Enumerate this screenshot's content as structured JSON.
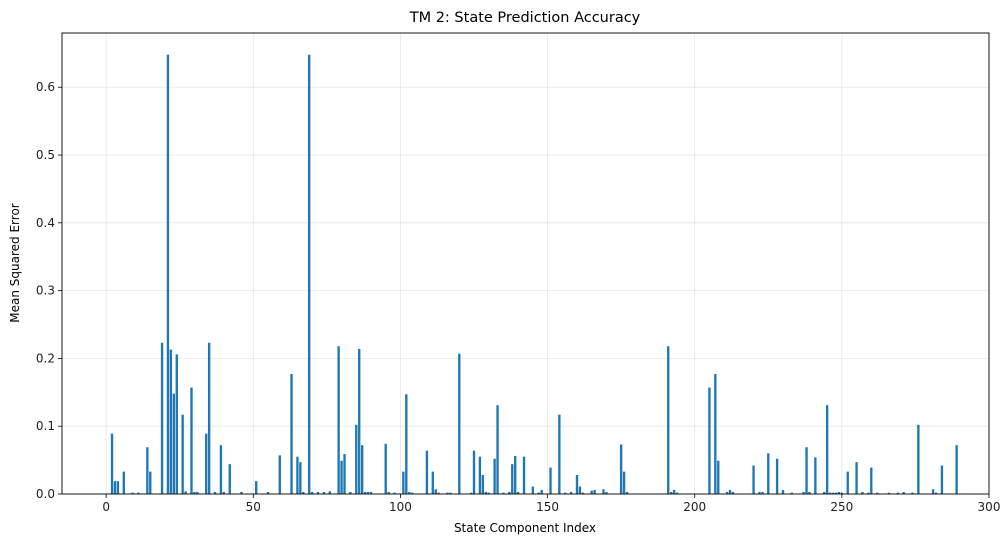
{
  "chart_data": {
    "type": "bar",
    "title": "TM 2: State Prediction Accuracy",
    "xlabel": "State Component Index",
    "ylabel": "Mean Squared Error",
    "xlim": [
      -15,
      300
    ],
    "ylim": [
      0,
      0.68
    ],
    "x_ticks": [
      0,
      50,
      100,
      150,
      200,
      250,
      300
    ],
    "x_tick_labels": [
      "0",
      "50",
      "100",
      "150",
      "200",
      "250",
      "300"
    ],
    "y_ticks": [
      0.0,
      0.1,
      0.2,
      0.3,
      0.4,
      0.5,
      0.6
    ],
    "y_tick_labels": [
      "0.0",
      "0.1",
      "0.2",
      "0.3",
      "0.4",
      "0.5",
      "0.6"
    ],
    "grid": true,
    "bar_color": "#1f77b4",
    "x": [
      2,
      3,
      4,
      6,
      9,
      11,
      14,
      15,
      19,
      21,
      22,
      23,
      24,
      26,
      27,
      29,
      30,
      31,
      34,
      35,
      37,
      39,
      40,
      42,
      46,
      51,
      55,
      59,
      63,
      65,
      66,
      67,
      69,
      70,
      72,
      74,
      76,
      79,
      80,
      81,
      83,
      85,
      86,
      87,
      88,
      89,
      90,
      95,
      96,
      98,
      101,
      102,
      103,
      104,
      109,
      111,
      112,
      113,
      116,
      117,
      120,
      124,
      125,
      127,
      128,
      129,
      130,
      132,
      133,
      135,
      137,
      138,
      139,
      140,
      142,
      145,
      147,
      148,
      151,
      154,
      156,
      158,
      160,
      161,
      162,
      165,
      166,
      169,
      170,
      175,
      176,
      177,
      191,
      192,
      193,
      194,
      205,
      207,
      208,
      211,
      212,
      213,
      220,
      222,
      223,
      225,
      228,
      230,
      233,
      237,
      238,
      239,
      241,
      244,
      245,
      246,
      247,
      248,
      249,
      250,
      252,
      255,
      257,
      259,
      260,
      262,
      266,
      269,
      271,
      274,
      276,
      281,
      282,
      284,
      289
    ],
    "values": [
      0.089,
      0.019,
      0.019,
      0.033,
      0.002,
      0.002,
      0.069,
      0.033,
      0.223,
      0.648,
      0.213,
      0.148,
      0.206,
      0.117,
      0.004,
      0.157,
      0.003,
      0.003,
      0.089,
      0.223,
      0.003,
      0.072,
      0.003,
      0.044,
      0.003,
      0.019,
      0.003,
      0.057,
      0.177,
      0.055,
      0.047,
      0.003,
      0.648,
      0.003,
      0.003,
      0.003,
      0.004,
      0.218,
      0.049,
      0.059,
      0.003,
      0.102,
      0.214,
      0.072,
      0.003,
      0.003,
      0.003,
      0.074,
      0.003,
      0.002,
      0.033,
      0.147,
      0.003,
      0.002,
      0.064,
      0.033,
      0.007,
      0.002,
      0.002,
      0.002,
      0.207,
      0.002,
      0.064,
      0.055,
      0.028,
      0.003,
      0.002,
      0.052,
      0.131,
      0.002,
      0.003,
      0.044,
      0.056,
      0.003,
      0.055,
      0.011,
      0.002,
      0.006,
      0.039,
      0.117,
      0.002,
      0.003,
      0.028,
      0.011,
      0.002,
      0.005,
      0.006,
      0.007,
      0.003,
      0.073,
      0.033,
      0.003,
      0.218,
      0.003,
      0.006,
      0.002,
      0.157,
      0.177,
      0.049,
      0.003,
      0.006,
      0.003,
      0.042,
      0.003,
      0.003,
      0.06,
      0.052,
      0.006,
      0.002,
      0.003,
      0.069,
      0.003,
      0.054,
      0.003,
      0.131,
      0.002,
      0.002,
      0.002,
      0.003,
      0.002,
      0.033,
      0.047,
      0.003,
      0.002,
      0.039,
      0.002,
      0.002,
      0.002,
      0.003,
      0.002,
      0.102,
      0.007,
      0.002,
      0.042,
      0.072
    ]
  }
}
